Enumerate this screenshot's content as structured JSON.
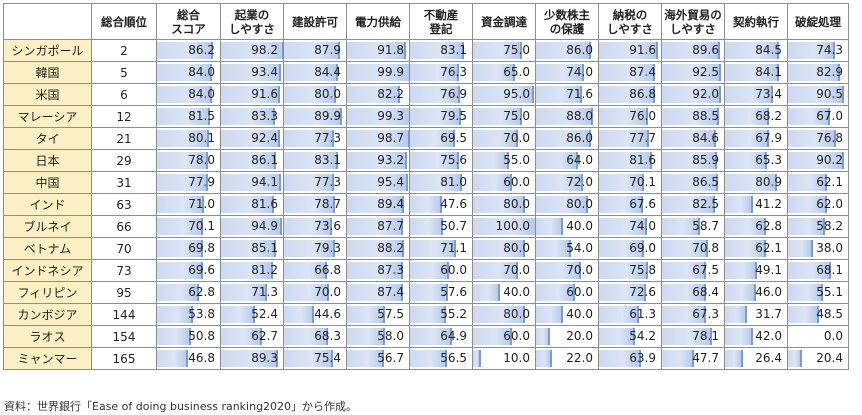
{
  "chart_data": {
    "type": "table",
    "headers": [
      "",
      "総合順位",
      "総合\nスコア",
      "起業の\nしやすさ",
      "建設許可",
      "電力供給",
      "不動産\n登記",
      "資金調達",
      "少数株主\nの保護",
      "納税の\nしやすさ",
      "海外貿易の\nしやすさ",
      "契約執行",
      "破綻処理"
    ],
    "rows": [
      {
        "country": "シンガポール",
        "rank": "2",
        "values": [
          "86.2",
          "98.2",
          "87.9",
          "91.8",
          "83.1",
          "75.0",
          "86.0",
          "91.6",
          "89.6",
          "84.5",
          "74.3"
        ]
      },
      {
        "country": "韓国",
        "rank": "5",
        "values": [
          "84.0",
          "93.4",
          "84.4",
          "99.9",
          "76.3",
          "65.0",
          "74.0",
          "87.4",
          "92.5",
          "84.1",
          "82.9"
        ]
      },
      {
        "country": "米国",
        "rank": "6",
        "values": [
          "84.0",
          "91.6",
          "80.0",
          "82.2",
          "76.9",
          "95.0",
          "71.6",
          "86.8",
          "92.0",
          "73.4",
          "90.5"
        ]
      },
      {
        "country": "マレーシア",
        "rank": "12",
        "values": [
          "81.5",
          "83.3",
          "89.9",
          "99.3",
          "79.5",
          "75.0",
          "88.0",
          "76.0",
          "88.5",
          "68.2",
          "67.0"
        ]
      },
      {
        "country": "タイ",
        "rank": "21",
        "values": [
          "80.1",
          "92.4",
          "77.3",
          "98.7",
          "69.5",
          "70.0",
          "86.0",
          "77.7",
          "84.6",
          "67.9",
          "76.8"
        ]
      },
      {
        "country": "日本",
        "rank": "29",
        "values": [
          "78.0",
          "86.1",
          "83.1",
          "93.2",
          "75.6",
          "55.0",
          "64.0",
          "81.6",
          "85.9",
          "65.3",
          "90.2"
        ]
      },
      {
        "country": "中国",
        "rank": "31",
        "values": [
          "77.9",
          "94.1",
          "77.3",
          "95.4",
          "81.0",
          "60.0",
          "72.0",
          "70.1",
          "86.5",
          "80.9",
          "62.1"
        ]
      },
      {
        "country": "インド",
        "rank": "63",
        "values": [
          "71.0",
          "81.6",
          "78.7",
          "89.4",
          "47.6",
          "80.0",
          "80.0",
          "67.6",
          "82.5",
          "41.2",
          "62.0"
        ]
      },
      {
        "country": "ブルネイ",
        "rank": "66",
        "values": [
          "70.1",
          "94.9",
          "73.6",
          "87.7",
          "50.7",
          "100.0",
          "40.0",
          "74.0",
          "58.7",
          "62.8",
          "58.2"
        ]
      },
      {
        "country": "ベトナム",
        "rank": "70",
        "values": [
          "69.8",
          "85.1",
          "79.3",
          "88.2",
          "71.1",
          "80.0",
          "54.0",
          "69.0",
          "70.8",
          "62.1",
          "38.0"
        ]
      },
      {
        "country": "インドネシア",
        "rank": "73",
        "values": [
          "69.6",
          "81.2",
          "66.8",
          "87.3",
          "60.0",
          "70.0",
          "70.0",
          "75.8",
          "67.5",
          "49.1",
          "68.1"
        ]
      },
      {
        "country": "フィリピン",
        "rank": "95",
        "values": [
          "62.8",
          "71.3",
          "70.0",
          "87.4",
          "57.6",
          "40.0",
          "60.0",
          "72.6",
          "68.4",
          "46.0",
          "55.1"
        ]
      },
      {
        "country": "カンボジア",
        "rank": "144",
        "values": [
          "53.8",
          "52.4",
          "44.6",
          "57.5",
          "55.2",
          "80.0",
          "40.0",
          "61.3",
          "67.3",
          "31.7",
          "48.5"
        ]
      },
      {
        "country": "ラオス",
        "rank": "154",
        "values": [
          "50.8",
          "62.7",
          "68.3",
          "58.0",
          "64.9",
          "60.0",
          "20.0",
          "54.2",
          "78.1",
          "42.0",
          "0.0"
        ]
      },
      {
        "country": "ミャンマー",
        "rank": "165",
        "values": [
          "46.8",
          "89.3",
          "75.4",
          "56.7",
          "56.5",
          "10.0",
          "22.0",
          "63.9",
          "47.7",
          "26.4",
          "20.4"
        ]
      }
    ],
    "value_scale_max": 100,
    "colors": {
      "country_bg": "#fdefc4",
      "bar_fill": "#d3def3",
      "bar_edge": "#7b9bd3"
    }
  },
  "source_note": "資料：世界銀行「Ease of doing business ranking2020」から作成。"
}
